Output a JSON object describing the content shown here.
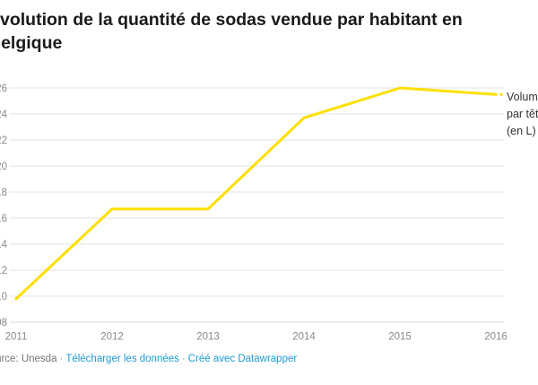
{
  "header": {
    "title": "Évolution de la quantité de sodas vendue par habitant en Belgique"
  },
  "chart_data": {
    "type": "line",
    "title": "Évolution de la quantité de sodas vendue par habitant en Belgique",
    "x": [
      2011,
      2012,
      2013,
      2014,
      2015,
      2016
    ],
    "series": [
      {
        "name": "Volume par tête (en L)",
        "values": [
          109.8,
          116.7,
          116.7,
          123.7,
          126,
          125.5
        ]
      }
    ],
    "xlabel": "",
    "ylabel": "",
    "ylim": [
      108,
      126
    ],
    "ytick_step": 2,
    "grid": true,
    "legend_position": "right-of-line-end"
  },
  "legend": {
    "series_label": "Volume par tête (en L)"
  },
  "footer": {
    "source_label": "Source: Unesda",
    "separator": "·",
    "download_link": "Télécharger les données",
    "credit_link": "Créé avec Datawrapper"
  },
  "colors": {
    "line": "#ffdf00",
    "link": "#1d9bd1",
    "grid": "#e3e3e3",
    "baseline": "#d9d9d9",
    "tick_text": "#8a8a8a",
    "title_text": "#1a1a1a",
    "label_text": "#333333"
  }
}
